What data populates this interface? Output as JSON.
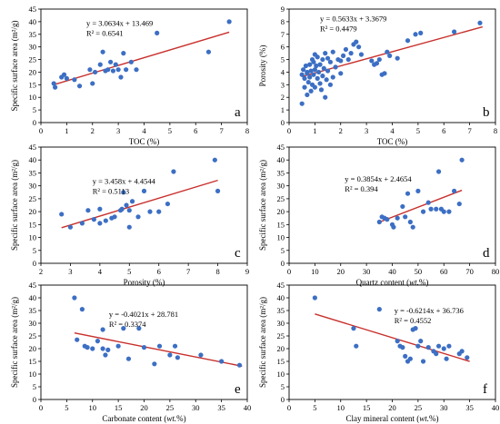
{
  "colors": {
    "point": "#3c6fc4",
    "trend": "#c8302c"
  },
  "chart_data": [
    {
      "id": "a",
      "type": "scatter",
      "letter": "a",
      "xlabel": "TOC (%)",
      "ylabel": "Specific surface area (m²/g)",
      "xlim": [
        0,
        8
      ],
      "ylim": [
        0,
        45
      ],
      "xticks": [
        0,
        1,
        2,
        3,
        4,
        5,
        6,
        7,
        8
      ],
      "yticks": [
        0,
        5,
        10,
        15,
        20,
        25,
        30,
        35,
        40,
        45
      ],
      "equation": "y = 3.0634x + 13.469",
      "r2": "R² = 0.6541",
      "trend": {
        "slope": 3.0634,
        "intercept": 13.469,
        "x": [
          0.5,
          7.3
        ]
      },
      "points": [
        [
          0.5,
          15.5
        ],
        [
          0.55,
          14
        ],
        [
          0.8,
          18
        ],
        [
          0.9,
          19
        ],
        [
          1.0,
          17.5
        ],
        [
          1.3,
          17
        ],
        [
          1.5,
          14.5
        ],
        [
          1.9,
          21
        ],
        [
          2.0,
          15.5
        ],
        [
          2.1,
          20
        ],
        [
          2.3,
          23
        ],
        [
          2.4,
          28
        ],
        [
          2.5,
          20.5
        ],
        [
          2.6,
          21
        ],
        [
          2.7,
          24
        ],
        [
          2.8,
          20.5
        ],
        [
          2.9,
          23
        ],
        [
          3.0,
          21
        ],
        [
          3.1,
          18
        ],
        [
          3.2,
          27.5
        ],
        [
          3.3,
          21
        ],
        [
          3.5,
          24
        ],
        [
          3.7,
          21
        ],
        [
          4.5,
          35.5
        ],
        [
          6.5,
          28
        ],
        [
          7.3,
          40
        ]
      ]
    },
    {
      "id": "b",
      "type": "scatter",
      "letter": "b",
      "xlabel": "TOC (%)",
      "ylabel": "Porosity (%)",
      "xlim": [
        0,
        8
      ],
      "ylim": [
        0,
        9
      ],
      "xticks": [
        0,
        1,
        2,
        3,
        4,
        5,
        6,
        7,
        8
      ],
      "yticks": [
        0,
        1,
        2,
        3,
        4,
        5,
        6,
        7,
        8,
        9
      ],
      "equation": "y = 0.5633x + 3.3679",
      "r2": "R² = 0.4479",
      "trend": {
        "slope": 0.5633,
        "intercept": 3.3679,
        "x": [
          0.5,
          7.5
        ]
      },
      "points": [
        [
          0.5,
          1.5
        ],
        [
          0.5,
          3.8
        ],
        [
          0.55,
          4.2
        ],
        [
          0.6,
          2.8
        ],
        [
          0.6,
          3.5
        ],
        [
          0.65,
          4.5
        ],
        [
          0.7,
          2.2
        ],
        [
          0.7,
          3.9
        ],
        [
          0.7,
          4.0
        ],
        [
          0.75,
          3.2
        ],
        [
          0.8,
          4.6
        ],
        [
          0.8,
          3.6
        ],
        [
          0.85,
          2.5
        ],
        [
          0.85,
          4.1
        ],
        [
          0.9,
          5.0
        ],
        [
          0.9,
          3.0
        ],
        [
          0.95,
          4.8
        ],
        [
          0.95,
          3.8
        ],
        [
          1.0,
          5.4
        ],
        [
          1.0,
          4.2
        ],
        [
          1.0,
          2.8
        ],
        [
          1.05,
          4.5
        ],
        [
          1.1,
          3.5
        ],
        [
          1.1,
          5.2
        ],
        [
          1.15,
          4.0
        ],
        [
          1.2,
          3.1
        ],
        [
          1.2,
          4.6
        ],
        [
          1.25,
          2.6
        ],
        [
          1.3,
          5.0
        ],
        [
          1.3,
          3.7
        ],
        [
          1.35,
          4.3
        ],
        [
          1.4,
          2.0
        ],
        [
          1.4,
          5.5
        ],
        [
          1.45,
          3.4
        ],
        [
          1.5,
          4.1
        ],
        [
          1.5,
          5.1
        ],
        [
          1.6,
          3.0
        ],
        [
          1.6,
          4.8
        ],
        [
          1.7,
          3.6
        ],
        [
          1.7,
          5.6
        ],
        [
          1.8,
          4.4
        ],
        [
          1.9,
          5.0
        ],
        [
          2.0,
          4.9
        ],
        [
          2.0,
          3.9
        ],
        [
          2.1,
          5.3
        ],
        [
          2.2,
          5.8
        ],
        [
          2.3,
          5.0
        ],
        [
          2.4,
          5.5
        ],
        [
          2.5,
          6.2
        ],
        [
          2.6,
          6.4
        ],
        [
          2.7,
          6.0
        ],
        [
          2.8,
          5.4
        ],
        [
          3.2,
          4.9
        ],
        [
          3.3,
          4.6
        ],
        [
          3.4,
          4.7
        ],
        [
          3.5,
          5.0
        ],
        [
          3.6,
          3.8
        ],
        [
          3.7,
          3.9
        ],
        [
          3.8,
          5.6
        ],
        [
          3.9,
          5.3
        ],
        [
          4.2,
          5.1
        ],
        [
          4.6,
          6.5
        ],
        [
          4.9,
          7.0
        ],
        [
          5.1,
          7.1
        ],
        [
          6.4,
          7.2
        ],
        [
          7.4,
          7.9
        ]
      ]
    },
    {
      "id": "c",
      "type": "scatter",
      "letter": "c",
      "xlabel": "Porosity (%)",
      "ylabel": "Specific surface area (m²/g)",
      "xlim": [
        2,
        9
      ],
      "ylim": [
        0,
        45
      ],
      "xticks": [
        2,
        3,
        4,
        5,
        6,
        7,
        8,
        9
      ],
      "yticks": [
        0,
        5,
        10,
        15,
        20,
        25,
        30,
        35,
        40,
        45
      ],
      "equation": "y = 3.458x + 4.4544",
      "r2": "R² = 0.5113",
      "trend": {
        "slope": 3.458,
        "intercept": 4.4544,
        "x": [
          2.7,
          8.0
        ]
      },
      "points": [
        [
          2.7,
          19
        ],
        [
          3.0,
          14
        ],
        [
          3.4,
          15.5
        ],
        [
          3.6,
          20.5
        ],
        [
          3.8,
          17
        ],
        [
          4.0,
          21
        ],
        [
          4.0,
          15.5
        ],
        [
          4.2,
          16.5
        ],
        [
          4.4,
          17.5
        ],
        [
          4.5,
          18
        ],
        [
          4.7,
          20.5
        ],
        [
          4.75,
          21
        ],
        [
          4.8,
          27.5
        ],
        [
          4.9,
          22.5
        ],
        [
          5.0,
          20.5
        ],
        [
          5.0,
          14
        ],
        [
          5.1,
          24
        ],
        [
          5.3,
          18
        ],
        [
          5.5,
          28
        ],
        [
          5.7,
          20
        ],
        [
          6.0,
          20
        ],
        [
          6.3,
          23
        ],
        [
          6.5,
          35.5
        ],
        [
          7.9,
          40
        ],
        [
          8.0,
          28
        ]
      ]
    },
    {
      "id": "d",
      "type": "scatter",
      "letter": "d",
      "xlabel": "Quartz content (wt.%)",
      "ylabel": "Specific surface area (m²/g)",
      "xlim": [
        0,
        80
      ],
      "ylim": [
        0,
        45
      ],
      "xticks": [
        0,
        10,
        20,
        30,
        40,
        50,
        60,
        70,
        80
      ],
      "yticks": [
        0,
        5,
        10,
        15,
        20,
        25,
        30,
        35,
        40,
        45
      ],
      "equation": "y = 0.3854x + 2.4654",
      "r2": "R² = 0.394",
      "trend": {
        "slope": 0.3854,
        "intercept": 2.4654,
        "x": [
          35,
          67
        ]
      },
      "points": [
        [
          35,
          16
        ],
        [
          36,
          18
        ],
        [
          37,
          17.5
        ],
        [
          38,
          17
        ],
        [
          40,
          15
        ],
        [
          40.5,
          14
        ],
        [
          42,
          17.5
        ],
        [
          44,
          22
        ],
        [
          45,
          18
        ],
        [
          46,
          27
        ],
        [
          47,
          16
        ],
        [
          48,
          14
        ],
        [
          50,
          28
        ],
        [
          52,
          20
        ],
        [
          54,
          23.5
        ],
        [
          55,
          21
        ],
        [
          57,
          21
        ],
        [
          58,
          35.5
        ],
        [
          59,
          21
        ],
        [
          60,
          20
        ],
        [
          62,
          20
        ],
        [
          64,
          28
        ],
        [
          66,
          23
        ],
        [
          67,
          40
        ]
      ]
    },
    {
      "id": "e",
      "type": "scatter",
      "letter": "e",
      "xlabel": "Carbonate content (wt.%)",
      "ylabel": "Specific surface area (m²/g)",
      "xlim": [
        0,
        40
      ],
      "ylim": [
        0,
        45
      ],
      "xticks": [
        0,
        5,
        10,
        15,
        20,
        25,
        30,
        35,
        40
      ],
      "yticks": [
        0,
        5,
        10,
        15,
        20,
        25,
        30,
        35,
        40,
        45
      ],
      "equation": "y = -0.4021x + 28.781",
      "r2": "R² = 0.3374",
      "trend": {
        "slope": -0.4021,
        "intercept": 28.781,
        "x": [
          6.5,
          39
        ]
      },
      "points": [
        [
          6.5,
          40
        ],
        [
          7,
          23.5
        ],
        [
          8,
          35.5
        ],
        [
          8.5,
          21
        ],
        [
          9,
          20.5
        ],
        [
          10,
          20
        ],
        [
          11,
          23
        ],
        [
          12,
          27.5
        ],
        [
          12,
          20
        ],
        [
          12.5,
          17.5
        ],
        [
          13,
          19.5
        ],
        [
          15,
          21
        ],
        [
          16,
          28
        ],
        [
          17,
          16
        ],
        [
          19,
          28
        ],
        [
          20,
          20.5
        ],
        [
          22,
          14
        ],
        [
          23,
          21
        ],
        [
          25,
          17.5
        ],
        [
          26,
          21
        ],
        [
          26.5,
          16.5
        ],
        [
          31,
          17.5
        ],
        [
          35,
          15
        ],
        [
          38.5,
          13.5
        ]
      ]
    },
    {
      "id": "f",
      "type": "scatter",
      "letter": "f",
      "xlabel": "Clay mineral content (wt.%)",
      "ylabel": "Specific surface area (m²/g)",
      "xlim": [
        0,
        40
      ],
      "ylim": [
        0,
        45
      ],
      "xticks": [
        0,
        5,
        10,
        15,
        20,
        25,
        30,
        35,
        40
      ],
      "yticks": [
        0,
        5,
        10,
        15,
        20,
        25,
        30,
        35,
        40,
        45
      ],
      "equation": "y = -0.6214x + 36.736",
      "r2": "R² = 0.4552",
      "trend": {
        "slope": -0.6214,
        "intercept": 36.736,
        "x": [
          5,
          35
        ]
      },
      "points": [
        [
          5,
          40
        ],
        [
          12.5,
          28
        ],
        [
          13,
          21
        ],
        [
          17.5,
          35.5
        ],
        [
          21,
          23
        ],
        [
          21.5,
          21
        ],
        [
          22,
          20.5
        ],
        [
          22.5,
          17
        ],
        [
          23,
          15
        ],
        [
          23.5,
          16
        ],
        [
          24,
          27.5
        ],
        [
          24.5,
          28
        ],
        [
          25,
          21
        ],
        [
          25.5,
          23
        ],
        [
          26,
          15
        ],
        [
          27,
          20.5
        ],
        [
          28,
          19
        ],
        [
          28.5,
          18
        ],
        [
          29,
          21
        ],
        [
          30,
          20
        ],
        [
          30.5,
          16
        ],
        [
          31,
          21
        ],
        [
          33,
          18
        ],
        [
          33.5,
          19
        ],
        [
          34.5,
          16.5
        ]
      ]
    }
  ]
}
